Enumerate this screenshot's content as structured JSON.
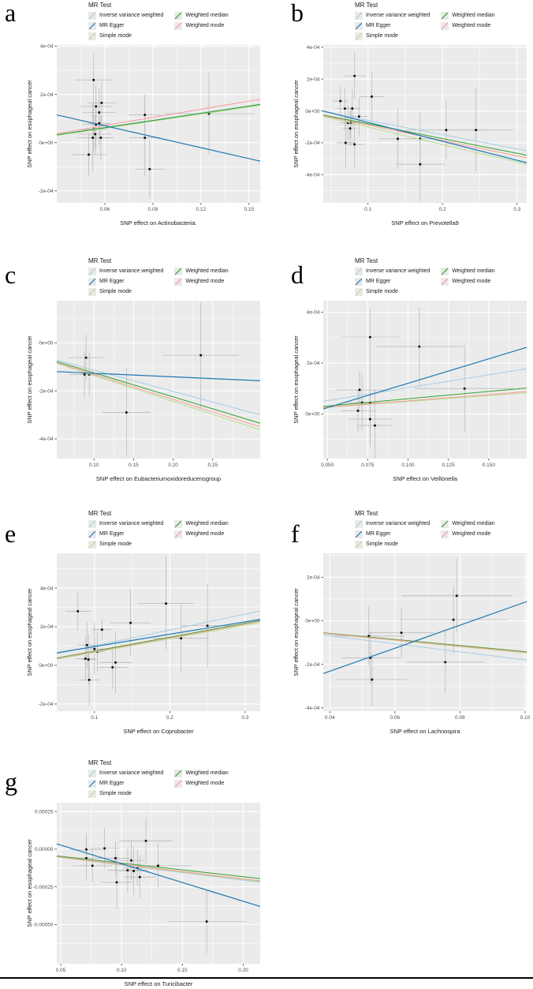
{
  "figure": {
    "background": "#ffffff",
    "panel_bg": "#ebebeb",
    "grid_color": "#ffffff",
    "point_color": "#000000",
    "errorbar_color": "#b3b3b3",
    "tick_label_color": "#4d4d4d",
    "axis_title_color": "#1a1a1a"
  },
  "legend": {
    "title": "MR Test",
    "items": [
      {
        "id": "ivw",
        "label": "Inverse variance weighted",
        "color": "#a6cee3",
        "column": 0
      },
      {
        "id": "egger",
        "label": "MR Egger",
        "color": "#1f78b4",
        "column": 0
      },
      {
        "id": "simple",
        "label": "Simple mode",
        "color": "#b2df8a",
        "column": 0
      },
      {
        "id": "wmedian",
        "label": "Weighted median",
        "color": "#33a02c",
        "column": 1
      },
      {
        "id": "wmode",
        "label": "Weighted mode",
        "color": "#fb9a99",
        "column": 1
      }
    ]
  },
  "chart_data": [
    {
      "letter": "a",
      "type": "scatter",
      "xlabel": "SNP effect on Actinobacteria.",
      "ylabel": "SNP effect on esophageal cancer",
      "xlim": [
        0.03,
        0.157
      ],
      "ylim": [
        -0.00025,
        0.000405
      ],
      "xticks": [
        {
          "v": 0.06,
          "label": "0.06"
        },
        {
          "v": 0.09,
          "label": "0.09"
        },
        {
          "v": 0.12,
          "label": "0.12"
        },
        {
          "v": 0.15,
          "label": "0.15"
        }
      ],
      "yticks": [
        {
          "v": -0.0002,
          "label": "-2e-04"
        },
        {
          "v": 0,
          "label": "0e+00"
        },
        {
          "v": 0.0002,
          "label": "2e-04"
        },
        {
          "v": 0.0004,
          "label": "4e-04"
        }
      ],
      "points": [
        [
          0.053,
          0.00026,
          0.012,
          0.00011
        ],
        [
          0.0545,
          0.00015,
          0.01,
          9e-05
        ],
        [
          0.058,
          0.000165,
          0.009,
          9e-05
        ],
        [
          0.0565,
          0.000125,
          0.01,
          0.0001
        ],
        [
          0.0565,
          8e-05,
          0.007,
          9e-05
        ],
        [
          0.0545,
          7.5e-05,
          0.008,
          0.0001
        ],
        [
          0.053,
          5.5e-05,
          0.009,
          9e-05
        ],
        [
          0.054,
          3.5e-05,
          0.01,
          8e-05
        ],
        [
          0.0525,
          2e-05,
          0.01,
          0.00014
        ],
        [
          0.0575,
          2e-05,
          0.008,
          9e-05
        ],
        [
          0.05,
          -5e-05,
          0.011,
          9e-05
        ],
        [
          0.085,
          0.000115,
          0.01,
          8.5e-05
        ],
        [
          0.085,
          2e-05,
          0.01,
          0.00016
        ],
        [
          0.088,
          -0.00011,
          0.009,
          0.00012
        ],
        [
          0.125,
          0.00012,
          0.028,
          0.00017
        ]
      ],
      "lines": [
        {
          "series": "ivw",
          "y": [
            3.3e-05,
            0.00016
          ]
        },
        {
          "series": "simple",
          "y": [
            3e-05,
            0.000155
          ]
        },
        {
          "series": "wmedian",
          "y": [
            3.2e-05,
            0.000158
          ]
        },
        {
          "series": "wmode",
          "y": [
            3.7e-05,
            0.00018
          ]
        },
        {
          "series": "egger",
          "y": [
            0.000115,
            -7.7e-05
          ]
        }
      ]
    },
    {
      "letter": "b",
      "type": "scatter",
      "xlabel": "SNP effect on Prevotella9",
      "ylabel": "SNP effect on esophageal cancer",
      "xlim": [
        0.04,
        0.313
      ],
      "ylim": [
        -0.000577,
        0.000414
      ],
      "xticks": [
        {
          "v": 0.1,
          "label": "0.1"
        },
        {
          "v": 0.2,
          "label": "0.2"
        },
        {
          "v": 0.3,
          "label": "0.3"
        }
      ],
      "yticks": [
        {
          "v": -0.0004,
          "label": "-4e-04"
        },
        {
          "v": -0.0002,
          "label": "-2e-04"
        },
        {
          "v": 0,
          "label": "0e+00"
        },
        {
          "v": 0.0002,
          "label": "2e-04"
        },
        {
          "v": 0.0004,
          "label": "4e-04"
        }
      ],
      "points": [
        [
          0.082,
          0.00022,
          0.015,
          0.00015
        ],
        [
          0.063,
          6.2e-05,
          0.01,
          0.0001
        ],
        [
          0.105,
          9e-05,
          0.016,
          0.00016
        ],
        [
          0.069,
          1.5e-05,
          0.011,
          0.00013
        ],
        [
          0.079,
          1.5e-05,
          0.01,
          0.00012
        ],
        [
          0.088,
          -3.5e-05,
          0.012,
          0.00012
        ],
        [
          0.073,
          -7.5e-05,
          0.011,
          0.00011
        ],
        [
          0.077,
          -7.5e-05,
          0.009,
          0.0001
        ],
        [
          0.076,
          -0.00011,
          0.01,
          0.00011
        ],
        [
          0.07,
          -0.0002,
          0.012,
          0.00016
        ],
        [
          0.082,
          -0.00021,
          0.013,
          0.00015
        ],
        [
          0.14,
          -0.000175,
          0.026,
          0.00019
        ],
        [
          0.17,
          -0.000175,
          0.022,
          0.00017
        ],
        [
          0.205,
          -0.00012,
          0.055,
          0.000185
        ],
        [
          0.245,
          -0.00012,
          0.05,
          0.00026
        ],
        [
          0.17,
          -0.000335,
          0.033,
          0.00023
        ]
      ],
      "lines": [
        {
          "series": "ivw",
          "y": [
            -5e-06,
            -0.00025
          ]
        },
        {
          "series": "simple",
          "y": [
            -3.5e-05,
            -0.000335
          ]
        },
        {
          "series": "wmedian",
          "y": [
            -2.5e-05,
            -0.000278
          ]
        },
        {
          "series": "wmode",
          "y": [
            -3e-05,
            -0.000295
          ]
        },
        {
          "series": "egger",
          "y": [
            0.0,
            -0.000325
          ]
        }
      ]
    },
    {
      "letter": "c",
      "type": "scatter",
      "xlabel": "SNP effect on Eubacteriumoxidoreducensgroup",
      "ylabel": "SNP effect on esophageal cancer",
      "xlim": [
        0.053,
        0.31
      ],
      "ylim": [
        -0.000482,
        0.000175
      ],
      "xticks": [
        {
          "v": 0.1,
          "label": "0.10"
        },
        {
          "v": 0.15,
          "label": "0.15"
        },
        {
          "v": 0.2,
          "label": "0.20"
        },
        {
          "v": 0.25,
          "label": "0.25"
        }
      ],
      "yticks": [
        {
          "v": -0.0004,
          "label": "-4e-04"
        },
        {
          "v": -0.0002,
          "label": "-2e-04"
        },
        {
          "v": 0,
          "label": "0e+00"
        }
      ],
      "points": [
        [
          0.09,
          -6.2e-05,
          0.022,
          9.5e-05
        ],
        [
          0.088,
          -0.000132,
          0.019,
          9.5e-05
        ],
        [
          0.094,
          -0.000132,
          0.011,
          9e-05
        ],
        [
          0.141,
          -0.00029,
          0.03,
          0.000185
        ],
        [
          0.235,
          -5.2e-05,
          0.048,
          0.00022
        ]
      ],
      "lines": [
        {
          "series": "ivw",
          "y": [
            -7.2e-05,
            -0.0003
          ]
        },
        {
          "series": "simple",
          "y": [
            -8.6e-05,
            -0.000362
          ]
        },
        {
          "series": "wmedian",
          "y": [
            -7.8e-05,
            -0.000335
          ]
        },
        {
          "series": "wmode",
          "y": [
            -8.3e-05,
            -0.00035
          ]
        },
        {
          "series": "egger",
          "y": [
            -0.00012,
            -0.000158
          ]
        }
      ]
    },
    {
      "letter": "d",
      "type": "scatter",
      "xlabel": "SNP effect on Veillonella",
      "ylabel": "SNP effect on esophageal cancer",
      "xlim": [
        0.0475,
        0.1735
      ],
      "ylim": [
        -0.000175,
        0.000445
      ],
      "xticks": [
        {
          "v": 0.05,
          "label": "0.050"
        },
        {
          "v": 0.075,
          "label": "0.075"
        },
        {
          "v": 0.1,
          "label": "0.100"
        },
        {
          "v": 0.125,
          "label": "0.125"
        },
        {
          "v": 0.15,
          "label": "0.150"
        }
      ],
      "yticks": [
        {
          "v": 0,
          "label": "0e+00"
        },
        {
          "v": 0.0002,
          "label": "2e-04"
        },
        {
          "v": 0.0004,
          "label": "4e-04"
        }
      ],
      "points": [
        [
          0.0765,
          0.000302,
          0.018,
          0.00011
        ],
        [
          0.107,
          0.000265,
          0.027,
          0.000155
        ],
        [
          0.07,
          9.5e-05,
          0.015,
          7.5e-05
        ],
        [
          0.0715,
          4.5e-05,
          0.01,
          0.00011
        ],
        [
          0.0765,
          4.2e-05,
          0.01,
          0.00015
        ],
        [
          0.069,
          1.3e-05,
          0.01,
          8.5e-05
        ],
        [
          0.0765,
          -2e-05,
          0.013,
          0.00011
        ],
        [
          0.0795,
          -4.5e-05,
          0.011,
          0.00014
        ],
        [
          0.135,
          0.0001,
          0.031,
          0.00017
        ]
      ],
      "lines": [
        {
          "series": "ivw",
          "y": [
            5e-05,
            0.000178
          ]
        },
        {
          "series": "simple",
          "y": [
            2.5e-05,
            8.3e-05
          ]
        },
        {
          "series": "wmedian",
          "y": [
            3e-05,
            0.000102
          ]
        },
        {
          "series": "wmode",
          "y": [
            2.6e-05,
            8.8e-05
          ]
        },
        {
          "series": "egger",
          "y": [
            2e-05,
            0.000262
          ]
        }
      ]
    },
    {
      "letter": "e",
      "type": "scatter",
      "xlabel": "SNP effect on Coprobacter",
      "ylabel": "SNP effect on esophageal cancer",
      "xlim": [
        0.05,
        0.32
      ],
      "ylim": [
        -0.000237,
        0.00058
      ],
      "xticks": [
        {
          "v": 0.1,
          "label": "0.1"
        },
        {
          "v": 0.2,
          "label": "0.2"
        },
        {
          "v": 0.3,
          "label": "0.3"
        }
      ],
      "yticks": [
        {
          "v": -0.0002,
          "label": "-2e-04"
        },
        {
          "v": 0,
          "label": "0e+00"
        },
        {
          "v": 0.0002,
          "label": "2e-04"
        },
        {
          "v": 0.0004,
          "label": "4e-04"
        }
      ],
      "points": [
        [
          0.078,
          0.00028,
          0.017,
          0.0001
        ],
        [
          0.09,
          0.000105,
          0.012,
          0.00012
        ],
        [
          0.088,
          3.5e-05,
          0.013,
          0.00011
        ],
        [
          0.092,
          3e-05,
          0.01,
          0.00013
        ],
        [
          0.093,
          -7.5e-05,
          0.014,
          0.00013
        ],
        [
          0.1,
          8.5e-05,
          0.011,
          0.000135
        ],
        [
          0.104,
          7e-05,
          0.01,
          0.0001
        ],
        [
          0.11,
          0.000185,
          0.012,
          5.5e-05
        ],
        [
          0.124,
          -1e-05,
          0.02,
          0.00011
        ],
        [
          0.128,
          1.5e-05,
          0.022,
          0.00016
        ],
        [
          0.148,
          0.00022,
          0.027,
          0.00017
        ],
        [
          0.195,
          0.00032,
          0.037,
          0.00024
        ],
        [
          0.215,
          0.00014,
          0.037,
          0.000175
        ],
        [
          0.25,
          0.000205,
          0.035,
          0.00022
        ]
      ],
      "lines": [
        {
          "series": "ivw",
          "y": [
            6e-05,
            0.000282
          ]
        },
        {
          "series": "simple",
          "y": [
            3.2e-05,
            0.000222
          ]
        },
        {
          "series": "wmedian",
          "y": [
            3.8e-05,
            0.000232
          ]
        },
        {
          "series": "wmode",
          "y": [
            3.5e-05,
            0.000228
          ]
        },
        {
          "series": "egger",
          "y": [
            6.5e-05,
            0.000238
          ]
        }
      ]
    },
    {
      "letter": "f",
      "type": "scatter",
      "xlabel": "SNP effect on Lachnospira",
      "ylabel": "SNP effect on esophageal cancer",
      "xlim": [
        0.038,
        0.1005
      ],
      "ylim": [
        -0.000415,
        0.00031
      ],
      "xticks": [
        {
          "v": 0.04,
          "label": "0.04"
        },
        {
          "v": 0.06,
          "label": "0.06"
        },
        {
          "v": 0.08,
          "label": "0.08"
        },
        {
          "v": 0.1,
          "label": "0.10"
        }
      ],
      "yticks": [
        {
          "v": -0.0004,
          "label": "-4e-04"
        },
        {
          "v": -0.0002,
          "label": "-2e-04"
        },
        {
          "v": 0,
          "label": "0e+00"
        },
        {
          "v": 0.0002,
          "label": "2e-04"
        }
      ],
      "points": [
        [
          0.052,
          -7e-05,
          0.011,
          0.000135
        ],
        [
          0.0525,
          -0.00017,
          0.009,
          0.00012
        ],
        [
          0.053,
          -0.00027,
          0.011,
          0.00012
        ],
        [
          0.062,
          -5.5e-05,
          0.01,
          0.000115
        ],
        [
          0.0755,
          -0.00019,
          0.012,
          0.000145
        ],
        [
          0.078,
          5e-06,
          0.0165,
          0.000155
        ],
        [
          0.079,
          0.000115,
          0.017,
          0.00017
        ]
      ],
      "lines": [
        {
          "series": "ivw",
          "y": [
            -6.5e-05,
            -0.00018
          ]
        },
        {
          "series": "simple",
          "y": [
            -5.8e-05,
            -0.000148
          ]
        },
        {
          "series": "wmedian",
          "y": [
            -5.5e-05,
            -0.000142
          ]
        },
        {
          "series": "wmode",
          "y": [
            -5.7e-05,
            -0.000145
          ]
        },
        {
          "series": "egger",
          "y": [
            -0.000242,
            8.8e-05
          ]
        }
      ]
    },
    {
      "letter": "g",
      "type": "scatter",
      "xlabel": "SNP effect on Turicibacter",
      "ylabel": "SNP effect on esophageal cancer",
      "xlim": [
        0.0467,
        0.214
      ],
      "ylim": [
        -0.00076,
        0.000308
      ],
      "xticks": [
        {
          "v": 0.05,
          "label": "0.05"
        },
        {
          "v": 0.1,
          "label": "0.10"
        },
        {
          "v": 0.15,
          "label": "0.15"
        },
        {
          "v": 0.2,
          "label": "0.20"
        }
      ],
      "yticks": [
        {
          "v": -0.0005,
          "label": "-0.00050"
        },
        {
          "v": -0.00025,
          "label": "-0.00025"
        },
        {
          "v": 0,
          "label": "0.00000"
        },
        {
          "v": 0.00025,
          "label": "0.00025"
        }
      ],
      "points": [
        [
          0.071,
          -2e-06,
          0.013,
          0.00011
        ],
        [
          0.071,
          -6e-05,
          0.012,
          0.00015
        ],
        [
          0.076,
          -0.00011,
          0.016,
          0.00011
        ],
        [
          0.086,
          5e-06,
          0.012,
          0.00013
        ],
        [
          0.095,
          -6e-05,
          0.013,
          0.00011
        ],
        [
          0.096,
          -0.00022,
          0.013,
          0.00018
        ],
        [
          0.105,
          -0.00014,
          0.016,
          0.00015
        ],
        [
          0.108,
          -7.5e-05,
          0.011,
          0.00013
        ],
        [
          0.11,
          -0.000145,
          0.012,
          0.00016
        ],
        [
          0.113,
          -0.000125,
          0.012,
          0.00012
        ],
        [
          0.115,
          -0.000185,
          0.013,
          0.00014
        ],
        [
          0.12,
          5.5e-05,
          0.022,
          0.00015
        ],
        [
          0.13,
          -0.00011,
          0.028,
          0.000145
        ],
        [
          0.17,
          -0.00048,
          0.032,
          0.00021
        ]
      ],
      "lines": [
        {
          "series": "ivw",
          "y": [
            -5.2e-05,
            -0.00022
          ]
        },
        {
          "series": "simple",
          "y": [
            -5.1e-05,
            -0.000215
          ]
        },
        {
          "series": "wmedian",
          "y": [
            -4.5e-05,
            -0.000195
          ]
        },
        {
          "series": "wmode",
          "y": [
            -5e-05,
            -0.00021
          ]
        },
        {
          "series": "egger",
          "y": [
            3.5e-05,
            -0.00038
          ]
        }
      ]
    }
  ]
}
